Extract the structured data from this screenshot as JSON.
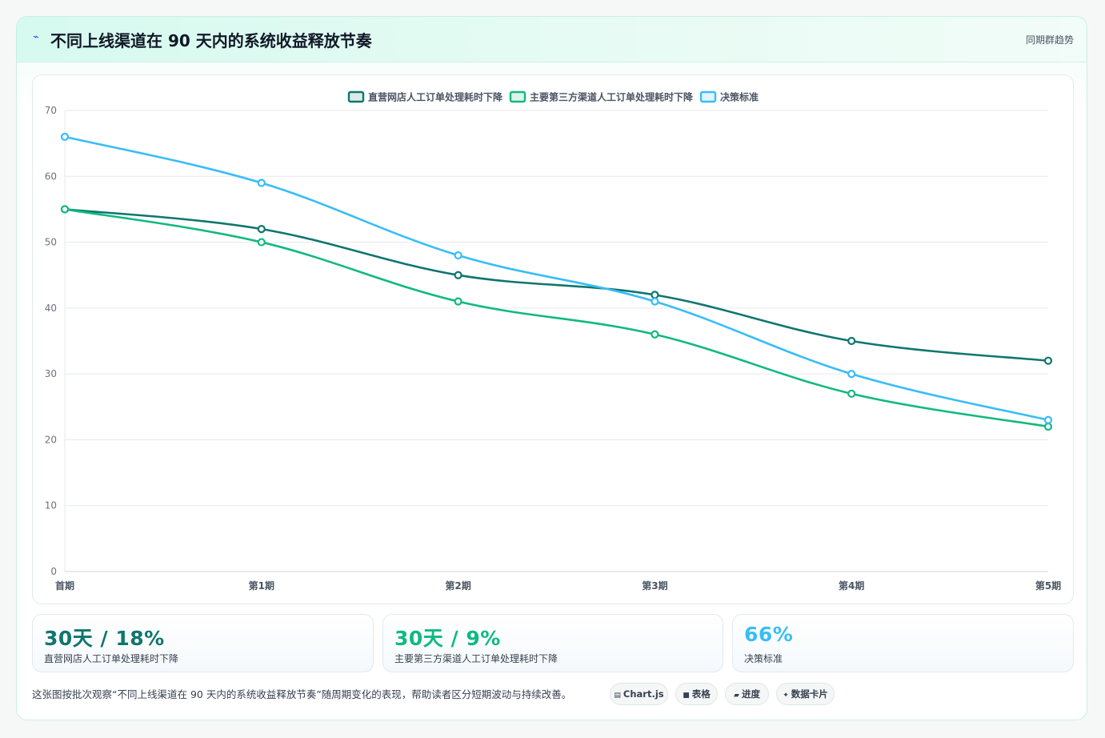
{
  "header": {
    "title": "不同上线渠道在 90 天内的系统收益释放节奏",
    "subtitle": "同期群趋势",
    "icon": "trend-icon"
  },
  "chart_data": {
    "type": "line",
    "categories": [
      "首期",
      "第1期",
      "第2期",
      "第3期",
      "第4期",
      "第5期"
    ],
    "series": [
      {
        "name": "直营网店人工订单处理耗时下降",
        "color": "#0f766e",
        "values": [
          55,
          52,
          45,
          42,
          35,
          32
        ]
      },
      {
        "name": "主要第三方渠道人工订单处理耗时下降",
        "color": "#10b981",
        "values": [
          55,
          50,
          41,
          36,
          27,
          22
        ]
      },
      {
        "name": "决策标准",
        "color": "#38bdf8",
        "values": [
          66,
          59,
          48,
          41,
          30,
          23
        ]
      }
    ],
    "ylim": [
      0,
      70
    ],
    "yticks": [
      0,
      10,
      20,
      30,
      40,
      50,
      60,
      70
    ],
    "grid": true,
    "legend": "top-center"
  },
  "stats": [
    {
      "value": "30天 / 18%",
      "label": "直营网店人工订单处理耗时下降",
      "color": "#0f766e"
    },
    {
      "value": "30天 / 9%",
      "label": "主要第三方渠道人工订单处理耗时下降",
      "color": "#10b981"
    },
    {
      "value": "66%",
      "label": "决策标准",
      "color": "#38bdf8"
    }
  ],
  "footer": {
    "note": "这张图按批次观察“不同上线渠道在 90 天内的系统收益释放节奏”随周期变化的表现，帮助读者区分短期波动与持续改善。",
    "pills": [
      {
        "icon": "▤",
        "label": "Chart.js"
      },
      {
        "icon": "■",
        "label": "表格"
      },
      {
        "icon": "▰",
        "label": "进度"
      },
      {
        "icon": "✦",
        "label": "数据卡片"
      }
    ]
  }
}
